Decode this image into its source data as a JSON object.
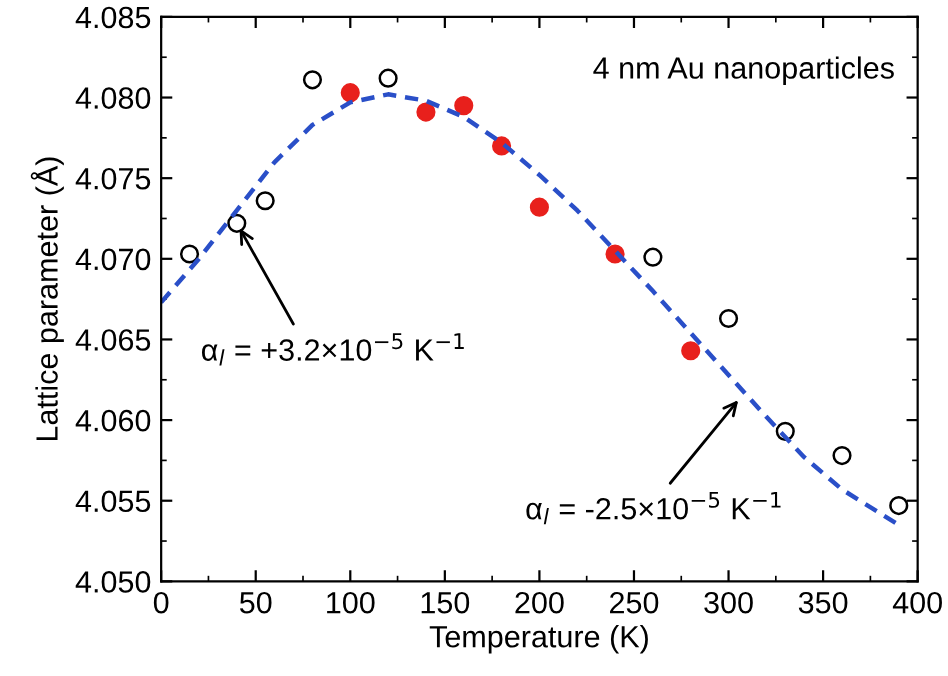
{
  "chart_data": {
    "type": "scatter",
    "xlabel": "Temperature (K)",
    "ylabel": "Lattice parameter (Å)",
    "xlim": [
      0,
      400
    ],
    "xticks": [
      0,
      50,
      100,
      150,
      200,
      250,
      300,
      350,
      {
        "value": 400,
        "label": "400"
      }
    ],
    "ylim": [
      4.05,
      4.085
    ],
    "yticks": [
      {
        "value": 4.05,
        "label": "4.050"
      },
      {
        "value": 4.055,
        "label": "4.055"
      },
      {
        "value": 4.06,
        "label": "4.060"
      },
      {
        "value": 4.065,
        "label": "4.065"
      },
      {
        "value": 4.07,
        "label": "4.070"
      },
      {
        "value": 4.075,
        "label": "4.075"
      },
      {
        "value": 4.08,
        "label": "4.080"
      },
      {
        "value": 4.085,
        "label": "4.085"
      }
    ],
    "grid": false,
    "legend": false,
    "marker": "circle",
    "series": [
      {
        "color": "#000000",
        "x": [
          15,
          40,
          55,
          80,
          120,
          260,
          300,
          330,
          360,
          390
        ],
        "values": [
          4.0703,
          4.0722,
          4.0736,
          4.0811,
          4.0812,
          4.0701,
          4.0663,
          4.0593,
          4.0578,
          4.0547
        ]
      },
      {
        "color": "#e8201c",
        "x": [
          100,
          140,
          160,
          180,
          200,
          240,
          280
        ],
        "values": [
          4.0803,
          4.0791,
          4.0795,
          4.077,
          4.0732,
          4.0703,
          4.0643
        ]
      },
      {
        "type": "line",
        "color": "#2a4fc8",
        "line_style": "dashed",
        "marker": "none",
        "x": [
          0,
          20,
          40,
          60,
          80,
          100,
          120,
          140,
          160,
          180,
          200,
          220,
          240,
          260,
          280,
          300,
          320,
          340,
          360,
          390
        ],
        "values": [
          4.0673,
          4.07,
          4.073,
          4.076,
          4.0783,
          4.0797,
          4.0802,
          4.0798,
          4.0788,
          4.0772,
          4.0752,
          4.073,
          4.0705,
          4.068,
          4.0654,
          4.0628,
          4.0602,
          4.0577,
          4.0557,
          4.0535
        ]
      }
    ],
    "annotations": [
      "4 nm Au nanoparticles",
      {
        "text": "α$_{l}$ = +3.2×10$^{−5}$ K$^{−1}$",
        "x": 40,
        "y": 4.0722
      },
      {
        "text": "α$_{l}$ = -2.5×10$^{−5}$ K$^{−1}$",
        "x": 307,
        "y": 4.0615
      }
    ]
  }
}
